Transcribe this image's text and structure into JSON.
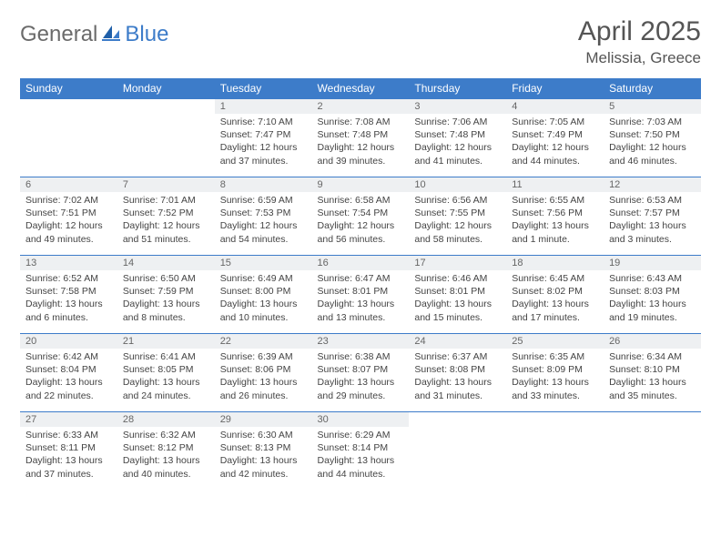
{
  "brand": {
    "part1": "General",
    "part2": "Blue"
  },
  "title": "April 2025",
  "location": "Melissia, Greece",
  "colors": {
    "header_bg": "#3d7cc9",
    "header_text": "#ffffff",
    "daynum_bg": "#eef0f2",
    "border": "#3d7cc9",
    "title_color": "#555555",
    "body_text": "#444444"
  },
  "day_headers": [
    "Sunday",
    "Monday",
    "Tuesday",
    "Wednesday",
    "Thursday",
    "Friday",
    "Saturday"
  ],
  "weeks": [
    [
      null,
      null,
      {
        "n": "1",
        "sr": "7:10 AM",
        "ss": "7:47 PM",
        "dl": "12 hours and 37 minutes."
      },
      {
        "n": "2",
        "sr": "7:08 AM",
        "ss": "7:48 PM",
        "dl": "12 hours and 39 minutes."
      },
      {
        "n": "3",
        "sr": "7:06 AM",
        "ss": "7:48 PM",
        "dl": "12 hours and 41 minutes."
      },
      {
        "n": "4",
        "sr": "7:05 AM",
        "ss": "7:49 PM",
        "dl": "12 hours and 44 minutes."
      },
      {
        "n": "5",
        "sr": "7:03 AM",
        "ss": "7:50 PM",
        "dl": "12 hours and 46 minutes."
      }
    ],
    [
      {
        "n": "6",
        "sr": "7:02 AM",
        "ss": "7:51 PM",
        "dl": "12 hours and 49 minutes."
      },
      {
        "n": "7",
        "sr": "7:01 AM",
        "ss": "7:52 PM",
        "dl": "12 hours and 51 minutes."
      },
      {
        "n": "8",
        "sr": "6:59 AM",
        "ss": "7:53 PM",
        "dl": "12 hours and 54 minutes."
      },
      {
        "n": "9",
        "sr": "6:58 AM",
        "ss": "7:54 PM",
        "dl": "12 hours and 56 minutes."
      },
      {
        "n": "10",
        "sr": "6:56 AM",
        "ss": "7:55 PM",
        "dl": "12 hours and 58 minutes."
      },
      {
        "n": "11",
        "sr": "6:55 AM",
        "ss": "7:56 PM",
        "dl": "13 hours and 1 minute."
      },
      {
        "n": "12",
        "sr": "6:53 AM",
        "ss": "7:57 PM",
        "dl": "13 hours and 3 minutes."
      }
    ],
    [
      {
        "n": "13",
        "sr": "6:52 AM",
        "ss": "7:58 PM",
        "dl": "13 hours and 6 minutes."
      },
      {
        "n": "14",
        "sr": "6:50 AM",
        "ss": "7:59 PM",
        "dl": "13 hours and 8 minutes."
      },
      {
        "n": "15",
        "sr": "6:49 AM",
        "ss": "8:00 PM",
        "dl": "13 hours and 10 minutes."
      },
      {
        "n": "16",
        "sr": "6:47 AM",
        "ss": "8:01 PM",
        "dl": "13 hours and 13 minutes."
      },
      {
        "n": "17",
        "sr": "6:46 AM",
        "ss": "8:01 PM",
        "dl": "13 hours and 15 minutes."
      },
      {
        "n": "18",
        "sr": "6:45 AM",
        "ss": "8:02 PM",
        "dl": "13 hours and 17 minutes."
      },
      {
        "n": "19",
        "sr": "6:43 AM",
        "ss": "8:03 PM",
        "dl": "13 hours and 19 minutes."
      }
    ],
    [
      {
        "n": "20",
        "sr": "6:42 AM",
        "ss": "8:04 PM",
        "dl": "13 hours and 22 minutes."
      },
      {
        "n": "21",
        "sr": "6:41 AM",
        "ss": "8:05 PM",
        "dl": "13 hours and 24 minutes."
      },
      {
        "n": "22",
        "sr": "6:39 AM",
        "ss": "8:06 PM",
        "dl": "13 hours and 26 minutes."
      },
      {
        "n": "23",
        "sr": "6:38 AM",
        "ss": "8:07 PM",
        "dl": "13 hours and 29 minutes."
      },
      {
        "n": "24",
        "sr": "6:37 AM",
        "ss": "8:08 PM",
        "dl": "13 hours and 31 minutes."
      },
      {
        "n": "25",
        "sr": "6:35 AM",
        "ss": "8:09 PM",
        "dl": "13 hours and 33 minutes."
      },
      {
        "n": "26",
        "sr": "6:34 AM",
        "ss": "8:10 PM",
        "dl": "13 hours and 35 minutes."
      }
    ],
    [
      {
        "n": "27",
        "sr": "6:33 AM",
        "ss": "8:11 PM",
        "dl": "13 hours and 37 minutes."
      },
      {
        "n": "28",
        "sr": "6:32 AM",
        "ss": "8:12 PM",
        "dl": "13 hours and 40 minutes."
      },
      {
        "n": "29",
        "sr": "6:30 AM",
        "ss": "8:13 PM",
        "dl": "13 hours and 42 minutes."
      },
      {
        "n": "30",
        "sr": "6:29 AM",
        "ss": "8:14 PM",
        "dl": "13 hours and 44 minutes."
      },
      null,
      null,
      null
    ]
  ],
  "labels": {
    "sunrise": "Sunrise:",
    "sunset": "Sunset:",
    "daylight": "Daylight:"
  }
}
